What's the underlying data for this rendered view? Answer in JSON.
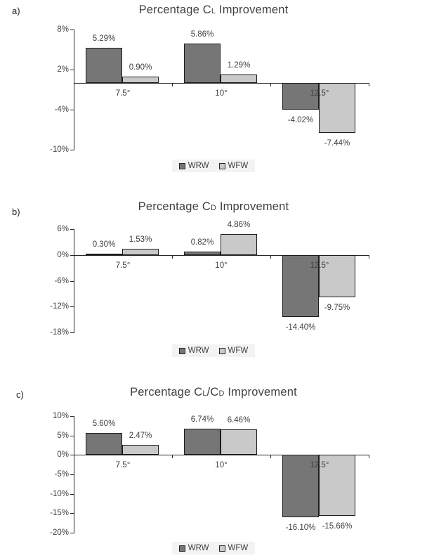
{
  "figure": {
    "background": "#ffffff",
    "legend_background": "#f3f3f3",
    "axis_color": "#262626",
    "text_color": "#3f3f3f",
    "series_colors": {
      "WRW": "#767676",
      "WFW": "#c9c9c9"
    },
    "legend_labels": [
      "WRW",
      "WFW"
    ]
  },
  "chart_data": [
    {
      "type": "bar",
      "panel_label": "a)",
      "title": "Percentage CL Improvement",
      "title_parts": [
        {
          "text": "Percentage C"
        },
        {
          "text": "L",
          "small": true
        },
        {
          "text": " Improvement"
        }
      ],
      "categories": [
        "7.5°",
        "10°",
        "12.5°"
      ],
      "series": [
        {
          "name": "WRW",
          "color": "#767676",
          "values": [
            5.29,
            5.86,
            -4.02
          ],
          "labels": [
            "5.29%",
            "5.86%",
            "-4.02%"
          ]
        },
        {
          "name": "WFW",
          "color": "#c9c9c9",
          "values": [
            0.9,
            1.29,
            -7.44
          ],
          "labels": [
            "0.90%",
            "1.29%",
            "-7.44%"
          ]
        }
      ],
      "ylim": [
        -10,
        8
      ],
      "yticks": [
        {
          "value": 8,
          "label": "8%"
        },
        {
          "value": 2,
          "label": "2%"
        },
        {
          "value": -4,
          "label": "-4%"
        },
        {
          "value": -10,
          "label": "-10%"
        }
      ],
      "legend_position": "bottom",
      "grid": false
    },
    {
      "type": "bar",
      "panel_label": "b)",
      "title": "Percentage CD Improvement",
      "title_parts": [
        {
          "text": "Percentage C"
        },
        {
          "text": "D",
          "small": true
        },
        {
          "text": " Improvement"
        }
      ],
      "categories": [
        "7.5°",
        "10°",
        "12.5°"
      ],
      "series": [
        {
          "name": "WRW",
          "color": "#767676",
          "values": [
            0.3,
            0.82,
            -14.4
          ],
          "labels": [
            "0.30%",
            "0.82%",
            "-14.40%"
          ]
        },
        {
          "name": "WFW",
          "color": "#c9c9c9",
          "values": [
            1.53,
            4.86,
            -9.75
          ],
          "labels": [
            "1.53%",
            "4.86%",
            "-9.75%"
          ]
        }
      ],
      "ylim": [
        -18,
        6
      ],
      "yticks": [
        {
          "value": 6,
          "label": "6%"
        },
        {
          "value": 0,
          "label": "0%"
        },
        {
          "value": -6,
          "label": "-6%"
        },
        {
          "value": -12,
          "label": "-12%"
        },
        {
          "value": -18,
          "label": "-18%"
        }
      ],
      "legend_position": "bottom",
      "grid": false
    },
    {
      "type": "bar",
      "panel_label": "c)",
      "title": "Percentage CL/CD Improvement",
      "title_parts": [
        {
          "text": "Percentage C"
        },
        {
          "text": "L",
          "small": true
        },
        {
          "text": "/C"
        },
        {
          "text": "D",
          "small": true
        },
        {
          "text": " Improvement"
        }
      ],
      "categories": [
        "7.5°",
        "10°",
        "12.5°"
      ],
      "series": [
        {
          "name": "WRW",
          "color": "#767676",
          "values": [
            5.6,
            6.74,
            -16.1
          ],
          "labels": [
            "5.60%",
            "6.74%",
            "-16.10%"
          ]
        },
        {
          "name": "WFW",
          "color": "#c9c9c9",
          "values": [
            2.47,
            6.46,
            -15.66
          ],
          "labels": [
            "2.47%",
            "6.46%",
            "-15.66%"
          ]
        }
      ],
      "ylim": [
        -20,
        10
      ],
      "yticks": [
        {
          "value": 10,
          "label": "10%"
        },
        {
          "value": 5,
          "label": "5%"
        },
        {
          "value": 0,
          "label": "0%"
        },
        {
          "value": -5,
          "label": "-5%"
        },
        {
          "value": -10,
          "label": "-10%"
        },
        {
          "value": -15,
          "label": "-15%"
        },
        {
          "value": -20,
          "label": "-20%"
        }
      ],
      "legend_position": "bottom",
      "grid": false
    }
  ]
}
